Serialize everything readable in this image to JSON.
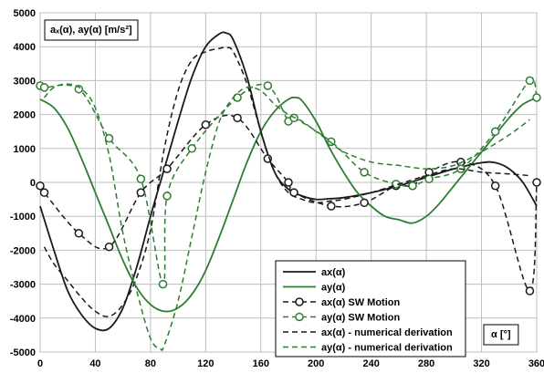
{
  "chart_data": {
    "type": "line",
    "ylabel": "aₓ(α), ay(α) [m/s²]",
    "xlabel": "α [°]",
    "xlim": [
      0,
      360
    ],
    "ylim": [
      -5000,
      5000
    ],
    "x_ticks": [
      0,
      40,
      80,
      120,
      160,
      200,
      240,
      280,
      320,
      360
    ],
    "y_ticks": [
      5000,
      4000,
      3000,
      2000,
      1000,
      0,
      -1000,
      -2000,
      -3000,
      -4000,
      -5000
    ],
    "grid": true,
    "legend_position": "bottom-right",
    "colors": {
      "ax": "#1a1a1a",
      "ay": "#2e7d32"
    },
    "series": [
      {
        "name": "ax(α)",
        "style": "solid",
        "color": "#1a1a1a",
        "x": [
          0,
          10,
          20,
          30,
          40,
          50,
          60,
          70,
          80,
          90,
          100,
          110,
          120,
          130,
          135,
          140,
          150,
          160,
          170,
          180,
          190,
          200,
          210,
          220,
          240,
          260,
          280,
          300,
          320,
          330,
          340,
          350,
          360
        ],
        "y": [
          -700,
          -2000,
          -3200,
          -3900,
          -4300,
          -4300,
          -3700,
          -2500,
          -1000,
          400,
          1800,
          3100,
          4000,
          4380,
          4400,
          4200,
          3100,
          1500,
          300,
          -200,
          -400,
          -500,
          -480,
          -450,
          -300,
          -100,
          150,
          400,
          580,
          580,
          400,
          0,
          -700
        ]
      },
      {
        "name": "ay(α)",
        "style": "solid",
        "color": "#2e7d32",
        "x": [
          0,
          10,
          20,
          30,
          40,
          50,
          60,
          70,
          80,
          90,
          100,
          110,
          120,
          130,
          140,
          150,
          160,
          170,
          180,
          185,
          190,
          200,
          210,
          220,
          230,
          240,
          250,
          260,
          270,
          280,
          290,
          300,
          310,
          320,
          330,
          340,
          350,
          360
        ],
        "y": [
          2450,
          2200,
          1600,
          700,
          -300,
          -1300,
          -2300,
          -3100,
          -3600,
          -3800,
          -3700,
          -3300,
          -2600,
          -1600,
          -500,
          600,
          1500,
          2100,
          2450,
          2500,
          2400,
          1800,
          1000,
          300,
          -300,
          -700,
          -1000,
          -1100,
          -1200,
          -1000,
          -600,
          -100,
          400,
          900,
          1400,
          1900,
          2300,
          2500
        ]
      },
      {
        "name": "ax(α) SW Motion",
        "style": "dashed-markers",
        "color": "#1a1a1a",
        "x": [
          0,
          3,
          28,
          50,
          73,
          92,
          120,
          143,
          165,
          180,
          184,
          211,
          235,
          258,
          270,
          282,
          305,
          330,
          355,
          360
        ],
        "y": [
          -100,
          -300,
          -1500,
          -1900,
          -300,
          400,
          1700,
          1900,
          700,
          0,
          -300,
          -700,
          -600,
          -100,
          -100,
          300,
          600,
          -100,
          -3200,
          0
        ]
      },
      {
        "name": "ay(α) SW Motion",
        "style": "dashed-markers",
        "color": "#2e7d32",
        "x": [
          0,
          3,
          28,
          50,
          73,
          89,
          92,
          110,
          143,
          165,
          180,
          184,
          211,
          235,
          258,
          270,
          282,
          305,
          330,
          355,
          360
        ],
        "y": [
          2850,
          2800,
          2750,
          1300,
          100,
          -3000,
          -400,
          1000,
          2500,
          2850,
          1800,
          1900,
          1200,
          300,
          -50,
          -100,
          100,
          400,
          1500,
          3000,
          2500
        ]
      },
      {
        "name": "ax(α) - numerical derivation",
        "style": "dashed",
        "color": "#1a1a1a",
        "x": [
          3,
          10,
          20,
          30,
          40,
          50,
          60,
          70,
          80,
          90,
          100,
          110,
          120,
          130,
          135,
          140,
          150,
          160,
          170,
          180,
          190,
          200,
          210,
          220,
          240,
          260,
          280,
          300,
          320,
          340,
          355
        ],
        "y": [
          -1900,
          -2400,
          -2900,
          -3400,
          -3800,
          -3950,
          -3600,
          -2800,
          -1400,
          1000,
          2700,
          3600,
          3850,
          3950,
          3970,
          3850,
          2900,
          1500,
          300,
          -300,
          -500,
          -600,
          -550,
          -500,
          -300,
          -50,
          200,
          400,
          300,
          250,
          200
        ]
      },
      {
        "name": "ay(α) -  numerical derivation",
        "style": "dashed",
        "color": "#2e7d32",
        "x": [
          3,
          10,
          20,
          30,
          40,
          50,
          60,
          70,
          80,
          87,
          90,
          100,
          110,
          120,
          130,
          140,
          150,
          160,
          170,
          180,
          190,
          200,
          210,
          220,
          240,
          260,
          280,
          300,
          320,
          340,
          355
        ],
        "y": [
          2500,
          2800,
          2900,
          2750,
          2200,
          800,
          -1500,
          -3200,
          -4600,
          -4900,
          -4800,
          -3500,
          -1600,
          300,
          1800,
          2500,
          2800,
          2700,
          2300,
          2000,
          1800,
          1500,
          1200,
          900,
          600,
          500,
          400,
          500,
          900,
          1400,
          1850
        ]
      }
    ]
  }
}
